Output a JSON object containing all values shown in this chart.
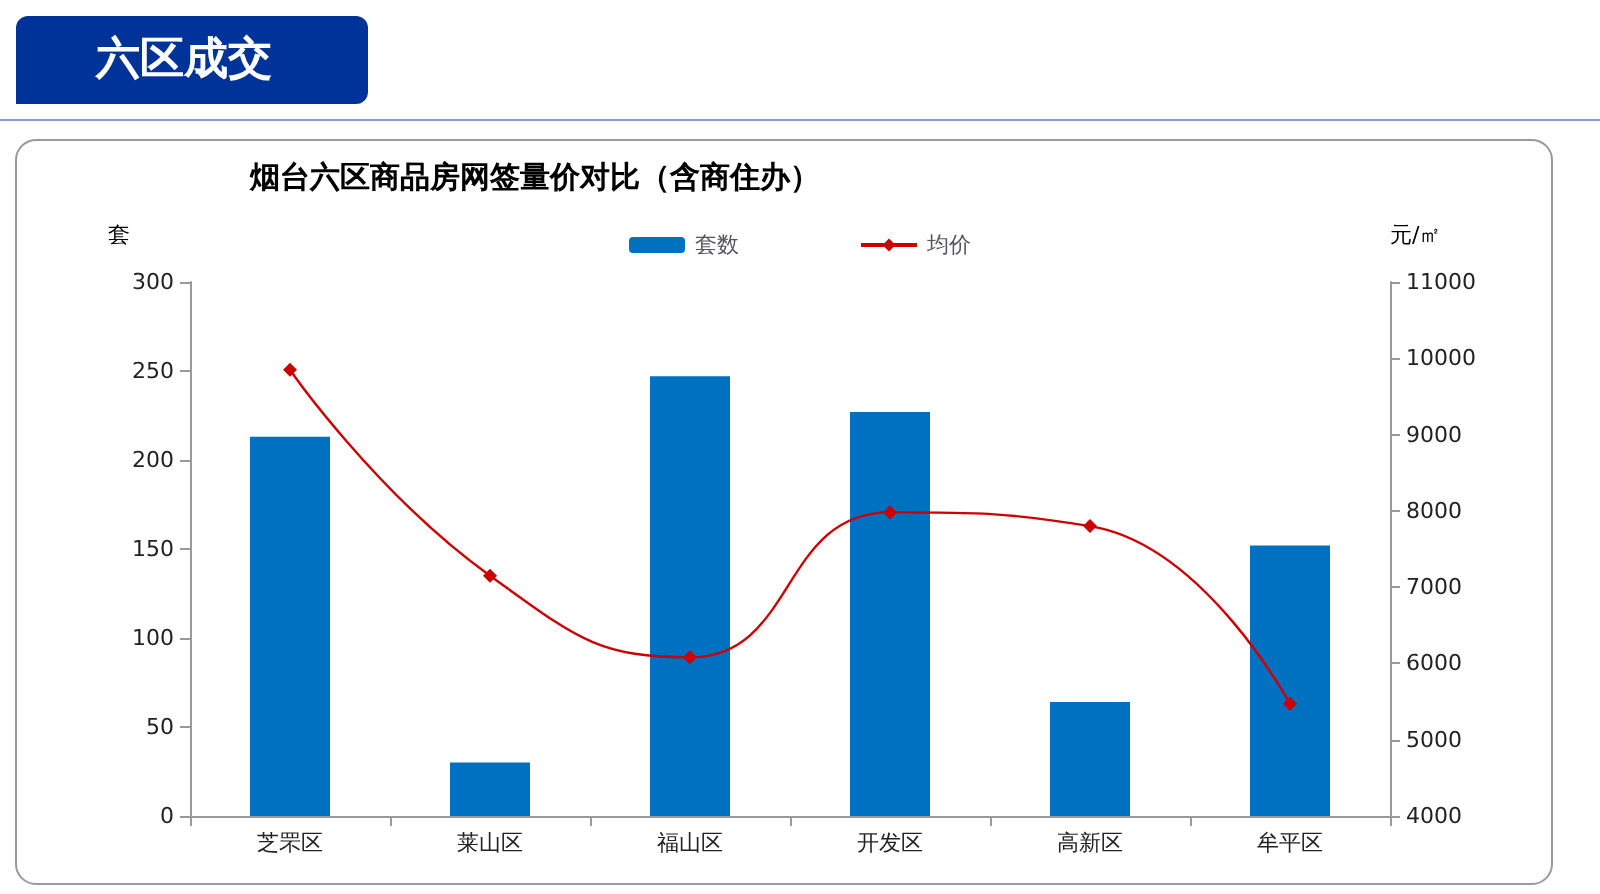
{
  "chart_data": {
    "type": "bar",
    "title": "烟台六区商品房网签量价对比（含商住办）",
    "annotations": [
      "六区成交"
    ],
    "categories": [
      "芝罘区",
      "莱山区",
      "福山区",
      "开发区",
      "高新区",
      "牟平区"
    ],
    "ylabel": "套",
    "y2label": "元/㎡",
    "series": [
      {
        "name": "套数",
        "color": "#0070c0",
        "values": [
          213,
          30,
          247,
          227,
          64,
          152
        ]
      },
      {
        "name": "均价",
        "type": "line",
        "axis": "y2",
        "color": "#cc0000",
        "marker": "diamond",
        "values": [
          9850,
          7150,
          6080,
          7980,
          7800,
          5470
        ]
      }
    ],
    "ylim": [
      0,
      300
    ],
    "yticks": [
      0,
      50,
      100,
      150,
      200,
      250,
      300
    ],
    "y2lim": [
      4000,
      11000
    ],
    "y2ticks": [
      4000,
      5000,
      6000,
      7000,
      8000,
      9000,
      10000,
      11000
    ],
    "grid": false,
    "legend": "top"
  }
}
